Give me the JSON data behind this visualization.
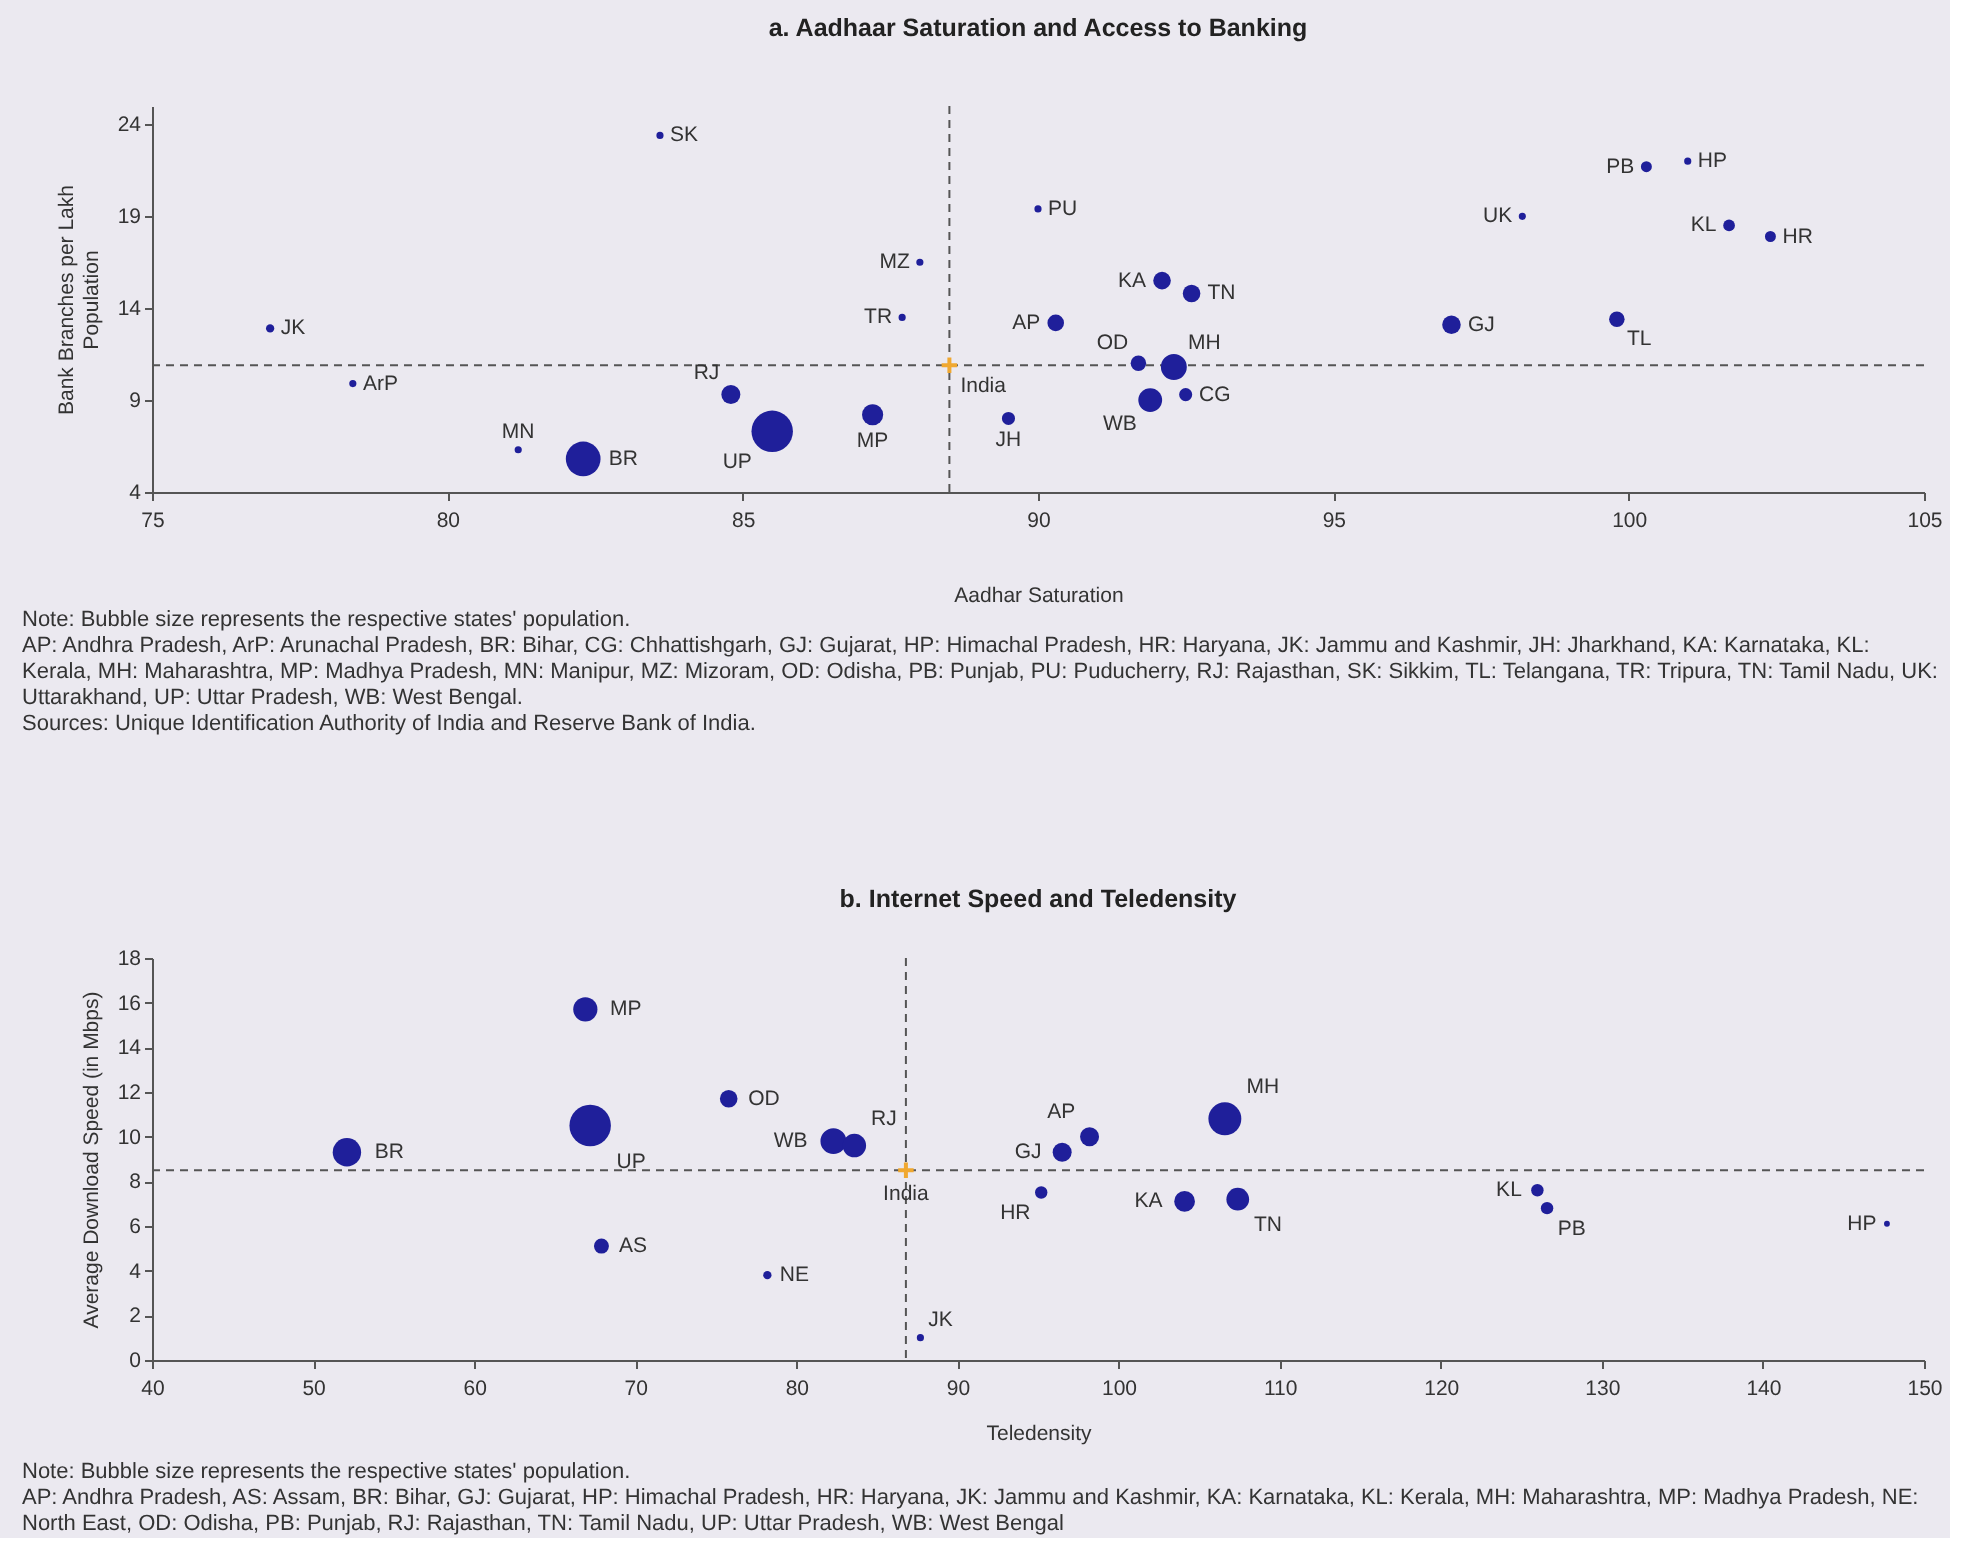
{
  "chart_data": [
    {
      "type": "bubble",
      "title": "a. Aadhaar Saturation and Access to Banking",
      "xlabel": "Aadhar Saturation",
      "ylabel": "Bank Branches per Lakh Population",
      "xlim": [
        75,
        105
      ],
      "ylim": [
        4,
        25
      ],
      "xticks": [
        75,
        80,
        85,
        90,
        95,
        100,
        105
      ],
      "yticks": [
        4,
        9,
        14,
        19,
        24
      ],
      "ref_lines": [
        {
          "axis": "x",
          "value": 88.5,
          "line_style": "dashed",
          "color": "#555555"
        },
        {
          "axis": "y",
          "value": 10.9,
          "line_style": "dashed",
          "color": "#555555"
        }
      ],
      "series": [
        {
          "name": "JK",
          "color": "#1f1f9a",
          "x": [
            77.0
          ],
          "values": [
            12.9
          ],
          "sizes": [
            0.04
          ]
        },
        {
          "name": "SK",
          "color": "#1f1f9a",
          "x": [
            83.6
          ],
          "values": [
            23.4
          ],
          "sizes": [
            0.03
          ]
        },
        {
          "name": "ArP",
          "color": "#1f1f9a",
          "x": [
            78.4
          ],
          "values": [
            9.9
          ],
          "sizes": [
            0.03
          ]
        },
        {
          "name": "MN",
          "color": "#1f1f9a",
          "x": [
            81.2
          ],
          "values": [
            6.3
          ],
          "sizes": [
            0.03
          ]
        },
        {
          "name": "BR",
          "color": "#1f1f9a",
          "x": [
            82.3
          ],
          "values": [
            5.8
          ],
          "sizes": [
            0.7
          ]
        },
        {
          "name": "RJ",
          "color": "#1f1f9a",
          "x": [
            84.8
          ],
          "values": [
            9.3
          ],
          "sizes": [
            0.21
          ]
        },
        {
          "name": "UP",
          "color": "#1f1f9a",
          "x": [
            85.5
          ],
          "values": [
            7.3
          ],
          "sizes": [
            1
          ]
        },
        {
          "name": "MP",
          "color": "#1f1f9a",
          "x": [
            87.2
          ],
          "values": [
            8.2
          ],
          "sizes": [
            0.26
          ]
        },
        {
          "name": "MZ",
          "color": "#1f1f9a",
          "x": [
            88.0
          ],
          "values": [
            16.5
          ],
          "sizes": [
            0.03
          ]
        },
        {
          "name": "TR",
          "color": "#1f1f9a",
          "x": [
            87.7
          ],
          "values": [
            13.5
          ],
          "sizes": [
            0.03
          ]
        },
        {
          "name": "JH",
          "color": "#1f1f9a",
          "x": [
            89.5
          ],
          "values": [
            8.0
          ],
          "sizes": [
            0.1
          ]
        },
        {
          "name": "PU",
          "color": "#1f1f9a",
          "x": [
            90.0
          ],
          "values": [
            19.4
          ],
          "sizes": [
            0.03
          ]
        },
        {
          "name": "AP",
          "color": "#1f1f9a",
          "x": [
            90.3
          ],
          "values": [
            13.2
          ],
          "sizes": [
            0.16
          ]
        },
        {
          "name": "KA",
          "color": "#1f1f9a",
          "x": [
            92.1
          ],
          "values": [
            15.5
          ],
          "sizes": [
            0.18
          ]
        },
        {
          "name": "TN",
          "color": "#1f1f9a",
          "x": [
            92.6
          ],
          "values": [
            14.8
          ],
          "sizes": [
            0.18
          ]
        },
        {
          "name": "OD",
          "color": "#1f1f9a",
          "x": [
            91.7
          ],
          "values": [
            11.0
          ],
          "sizes": [
            0.14
          ]
        },
        {
          "name": "MH",
          "color": "#1f1f9a",
          "x": [
            92.3
          ],
          "values": [
            10.8
          ],
          "sizes": [
            0.39
          ]
        },
        {
          "name": "WB",
          "color": "#1f1f9a",
          "x": [
            91.9
          ],
          "values": [
            9.0
          ],
          "sizes": [
            0.33
          ]
        },
        {
          "name": "CG",
          "color": "#1f1f9a",
          "x": [
            92.5
          ],
          "values": [
            9.3
          ],
          "sizes": [
            0.1
          ]
        },
        {
          "name": "UK",
          "color": "#1f1f9a",
          "x": [
            98.2
          ],
          "values": [
            19.0
          ],
          "sizes": [
            0.03
          ]
        },
        {
          "name": "GJ",
          "color": "#1f1f9a",
          "x": [
            97.0
          ],
          "values": [
            13.1
          ],
          "sizes": [
            0.2
          ]
        },
        {
          "name": "PB",
          "color": "#1f1f9a",
          "x": [
            100.3
          ],
          "values": [
            21.7
          ],
          "sizes": [
            0.07
          ]
        },
        {
          "name": "HP",
          "color": "#1f1f9a",
          "x": [
            101.0
          ],
          "values": [
            22.0
          ],
          "sizes": [
            0.03
          ]
        },
        {
          "name": "KL",
          "color": "#1f1f9a",
          "x": [
            101.7
          ],
          "values": [
            18.5
          ],
          "sizes": [
            0.08
          ]
        },
        {
          "name": "HR",
          "color": "#1f1f9a",
          "x": [
            102.4
          ],
          "values": [
            17.9
          ],
          "sizes": [
            0.07
          ]
        },
        {
          "name": "TL",
          "color": "#1f1f9a",
          "x": [
            99.8
          ],
          "values": [
            13.4
          ],
          "sizes": [
            0.14
          ]
        },
        {
          "name": "India",
          "type": "scatter",
          "marker": "cross",
          "color": "#f0a830",
          "x": [
            88.5
          ],
          "values": [
            10.9
          ]
        }
      ],
      "annotations": [
        "Note: Bubble size represents the respective states' population.",
        "AP: Andhra Pradesh, ArP: Arunachal Pradesh, BR: Bihar, CG: Chhattishgarh, GJ: Gujarat, HP: Himachal Pradesh, HR: Haryana, JK: Jammu and Kashmir, JH: Jharkhand, KA: Karnataka, KL: Kerala, MH: Maharashtra, MP: Madhya Pradesh, MN: Manipur, MZ: Mizoram, OD: Odisha, PB: Punjab, PU: Puducherry, RJ: Rajasthan, SK: Sikkim, TL: Telangana, TR: Tripura, TN: Tamil Nadu, UK: Uttarakhand, UP: Uttar Pradesh, WB: West Bengal.",
        "Sources: Unique Identification Authority of India and Reserve Bank of India."
      ]
    },
    {
      "type": "bubble",
      "title": "b. Internet Speed and Teledensity",
      "xlabel": "Teledensity",
      "ylabel": "Average Download Speed (in Mbps)",
      "xlim": [
        40,
        150
      ],
      "ylim": [
        0,
        18
      ],
      "xticks": [
        40,
        50,
        60,
        70,
        80,
        90,
        100,
        110,
        120,
        130,
        140,
        150
      ],
      "yticks": [
        0,
        2,
        4,
        6,
        8,
        10,
        12,
        14,
        16,
        18
      ],
      "ref_lines": [
        {
          "axis": "x",
          "value": 86.8,
          "line_style": "dashed",
          "color": "#555555"
        },
        {
          "axis": "y",
          "value": 8.5,
          "line_style": "dashed",
          "color": "#555555"
        }
      ],
      "series": [
        {
          "name": "BR",
          "color": "#1f1f9a",
          "x": [
            52.1
          ],
          "values": [
            9.3
          ],
          "sizes": [
            0.47
          ]
        },
        {
          "name": "MP",
          "color": "#1f1f9a",
          "x": [
            66.9
          ],
          "values": [
            15.7
          ],
          "sizes": [
            0.34
          ]
        },
        {
          "name": "UP",
          "color": "#1f1f9a",
          "x": [
            67.2
          ],
          "values": [
            10.5
          ],
          "sizes": [
            1
          ]
        },
        {
          "name": "AS",
          "color": "#1f1f9a",
          "x": [
            67.9
          ],
          "values": [
            5.1
          ],
          "sizes": [
            0.13
          ]
        },
        {
          "name": "OD",
          "color": "#1f1f9a",
          "x": [
            75.8
          ],
          "values": [
            11.7
          ],
          "sizes": [
            0.18
          ]
        },
        {
          "name": "NE",
          "color": "#1f1f9a",
          "x": [
            78.2
          ],
          "values": [
            3.8
          ],
          "sizes": [
            0.04
          ]
        },
        {
          "name": "WB",
          "color": "#1f1f9a",
          "x": [
            82.3
          ],
          "values": [
            9.8
          ],
          "sizes": [
            0.39
          ]
        },
        {
          "name": "RJ",
          "color": "#1f1f9a",
          "x": [
            83.6
          ],
          "values": [
            9.6
          ],
          "sizes": [
            0.32
          ]
        },
        {
          "name": "JK",
          "color": "#1f1f9a",
          "x": [
            87.7
          ],
          "values": [
            1.0
          ],
          "sizes": [
            0.03
          ]
        },
        {
          "name": "HR",
          "color": "#1f1f9a",
          "x": [
            95.2
          ],
          "values": [
            7.5
          ],
          "sizes": [
            0.09
          ]
        },
        {
          "name": "GJ",
          "color": "#1f1f9a",
          "x": [
            96.5
          ],
          "values": [
            9.3
          ],
          "sizes": [
            0.21
          ]
        },
        {
          "name": "AP",
          "color": "#1f1f9a",
          "x": [
            98.2
          ],
          "values": [
            10.0
          ],
          "sizes": [
            0.21
          ]
        },
        {
          "name": "MH",
          "color": "#1f1f9a",
          "x": [
            106.6
          ],
          "values": [
            10.8
          ],
          "sizes": [
            0.63
          ]
        },
        {
          "name": "KA",
          "color": "#1f1f9a",
          "x": [
            104.1
          ],
          "values": [
            7.1
          ],
          "sizes": [
            0.25
          ]
        },
        {
          "name": "TN",
          "color": "#1f1f9a",
          "x": [
            107.4
          ],
          "values": [
            7.2
          ],
          "sizes": [
            0.3
          ]
        },
        {
          "name": "KL",
          "color": "#1f1f9a",
          "x": [
            126.0
          ],
          "values": [
            7.6
          ],
          "sizes": [
            0.09
          ]
        },
        {
          "name": "PB",
          "color": "#1f1f9a",
          "x": [
            126.6
          ],
          "values": [
            6.8
          ],
          "sizes": [
            0.09
          ]
        },
        {
          "name": "HP",
          "color": "#1f1f9a",
          "x": [
            147.7
          ],
          "values": [
            6.1
          ],
          "sizes": [
            0.02
          ]
        },
        {
          "name": "India",
          "type": "scatter",
          "marker": "cross",
          "color": "#f0a830",
          "x": [
            86.8
          ],
          "values": [
            8.5
          ]
        }
      ],
      "annotations": [
        "Note: Bubble size represents the respective states' population.",
        "AP: Andhra Pradesh, AS: Assam, BR: Bihar, GJ: Gujarat, HP: Himachal Pradesh, HR: Haryana, JK: Jammu and Kashmir, KA: Karnataka, KL: Kerala, MH: Maharashtra, MP: Madhya Pradesh, NE: North East, OD: Odisha, PB: Punjab, RJ: Rajasthan, TN: Tamil Nadu, UP: Uttar Pradesh, WB: West Bengal"
      ]
    }
  ]
}
